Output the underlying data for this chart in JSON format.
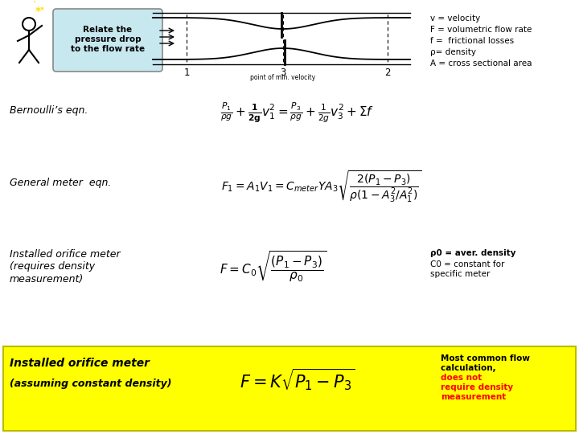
{
  "bg_color": "#ffffff",
  "yellow_bg": "#ffff00",
  "title_box_text": "Relate the\npressure drop\nto the flow rate",
  "title_box_bg": "#c8e8f0",
  "variables": [
    "v = velocity",
    "F = volumetric flow rate",
    "f =  frictional losses",
    "ρ= density",
    "A = cross sectional area"
  ],
  "bernoulli_label": "Bernoulli’s eqn.",
  "general_label": "General meter  eqn.",
  "orifice_label": "Installed orifice meter\n(requires density\nmeasurement)",
  "orifice_note1": "ρ0 = aver. density",
  "orifice_note2": "C0 = constant for\nspecific meter",
  "bottom_label1": "Installed orifice meter",
  "bottom_label2": "(assuming constant density)",
  "bottom_note_black": "Most common flow\ncalculation, ",
  "bottom_note_red": "does not\nrequire density\nmeasurement"
}
